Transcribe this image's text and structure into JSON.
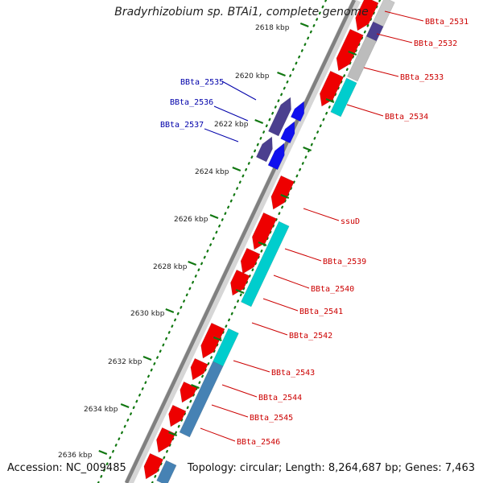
{
  "title": "Bradyrhizobium sp. BTAi1, complete genome",
  "accession": "Accession: NC_009485",
  "topology": "Topology: circular; Length: 8,264,687 bp; Genes: 7,463",
  "colors": {
    "backbone": "#808080",
    "forward_cds": "#ee0000",
    "reverse_cds": "#1010ee",
    "rna_reverse": "#4b3f8f",
    "cyan_feature": "#00cdcd",
    "steelblue_feature": "#4682b4",
    "tick": "#117711",
    "label_forward": "#cc0000",
    "label_reverse": "#0000aa"
  },
  "ticks": [
    "2618 kbp",
    "2620 kbp",
    "2622 kbp",
    "2624 kbp",
    "2626 kbp",
    "2628 kbp",
    "2630 kbp",
    "2632 kbp",
    "2634 kbp",
    "2636 kbp"
  ],
  "forward_labels": [
    "BBta_2531",
    "BBta_2532",
    "BBta_2533",
    "BBta_2534",
    "ssuD",
    "BBta_2539",
    "BBta_2540",
    "BBta_2541",
    "BBta_2542",
    "BBta_2543",
    "BBta_2544",
    "BBta_2545",
    "BBta_2546"
  ],
  "reverse_labels": [
    "BBta_2535",
    "BBta_2536",
    "BBta_2537"
  ]
}
